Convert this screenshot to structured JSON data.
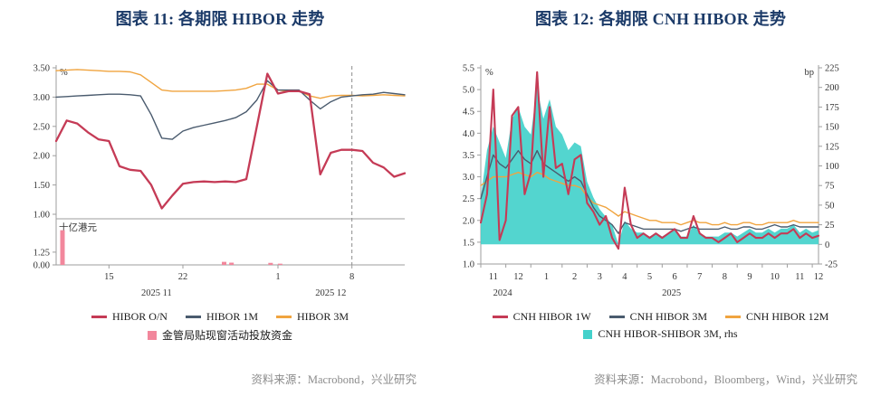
{
  "chart_data": [
    {
      "type": "line",
      "title": "图表 11: 各期限 HIBOR 走势",
      "y_unit": "%",
      "ylim": [
        1.0,
        3.5
      ],
      "ytick_step": 0.5,
      "x_count": 34,
      "xticks": [
        {
          "pos": 5,
          "label": "15"
        },
        {
          "pos": 12,
          "label": "22"
        },
        {
          "pos": 21,
          "label": "1"
        },
        {
          "pos": 28,
          "label": "8"
        }
      ],
      "xperiod_labels": [
        {
          "pos": 9.5,
          "label": "2025 11"
        },
        {
          "pos": 26,
          "label": "2025 12"
        }
      ],
      "dashed_line_pos": 28,
      "series": [
        {
          "name": "HIBOR O/N",
          "color": "#C53B56",
          "width": 2.3,
          "values": [
            2.25,
            2.6,
            2.55,
            2.4,
            2.28,
            2.25,
            1.82,
            1.76,
            1.74,
            1.5,
            1.1,
            1.32,
            1.52,
            1.55,
            1.56,
            1.55,
            1.56,
            1.55,
            1.6,
            2.5,
            3.4,
            3.06,
            3.1,
            3.1,
            3.05,
            1.68,
            2.05,
            2.1,
            2.1,
            2.08,
            1.88,
            1.8,
            1.64,
            1.7
          ]
        },
        {
          "name": "HIBOR 1M",
          "color": "#4A5B6E",
          "width": 1.4,
          "values": [
            3.0,
            3.01,
            3.02,
            3.03,
            3.04,
            3.05,
            3.05,
            3.04,
            3.02,
            2.7,
            2.3,
            2.28,
            2.42,
            2.48,
            2.52,
            2.56,
            2.6,
            2.65,
            2.75,
            2.95,
            3.28,
            3.12,
            3.12,
            3.12,
            2.95,
            2.8,
            2.92,
            3.0,
            3.02,
            3.04,
            3.05,
            3.08,
            3.06,
            3.04
          ]
        },
        {
          "name": "HIBOR 3M",
          "color": "#F0A43F",
          "width": 1.4,
          "values": [
            3.45,
            3.46,
            3.47,
            3.46,
            3.45,
            3.44,
            3.44,
            3.43,
            3.38,
            3.25,
            3.12,
            3.1,
            3.1,
            3.1,
            3.1,
            3.1,
            3.11,
            3.12,
            3.15,
            3.22,
            3.22,
            3.12,
            3.1,
            3.1,
            3.02,
            2.98,
            3.02,
            3.03,
            3.03,
            3.02,
            3.03,
            3.04,
            3.03,
            3.02
          ]
        }
      ],
      "bar_panel": {
        "name": "金管局贴现窗活动投放资金",
        "unit": "十亿港元",
        "color": "#F2879C",
        "ylim": [
          0,
          3.9
        ],
        "yticks": [
          {
            "v": 1.25,
            "label": "1.25"
          },
          {
            "v": 0,
            "label": "0.00"
          }
        ],
        "bars": [
          {
            "pos": 0.6,
            "value": 3.4
          },
          {
            "pos": 15.9,
            "value": 0.3
          },
          {
            "pos": 16.6,
            "value": 0.22
          },
          {
            "pos": 20.3,
            "value": 0.2
          },
          {
            "pos": 21.2,
            "value": 0.12
          }
        ]
      },
      "source": "资料来源：Macrobond，兴业研究"
    },
    {
      "type": "line+area",
      "title": "图表 12: 各期限 CNH HIBOR 走势",
      "unit_left": "%",
      "unit_right": "bp",
      "ylim_left": [
        1.0,
        5.5
      ],
      "ytick_step_left": 0.5,
      "ylim_right": [
        -25,
        225
      ],
      "ytick_step_right": 25,
      "x_count": 55,
      "month_boundaries": [
        0,
        4,
        8,
        13,
        17,
        21,
        25,
        29,
        33,
        37,
        41,
        45,
        49,
        53
      ],
      "xticks": [
        {
          "pos": 2,
          "label": "11"
        },
        {
          "pos": 6,
          "label": "12"
        },
        {
          "pos": 10.5,
          "label": "1"
        },
        {
          "pos": 15,
          "label": "2"
        },
        {
          "pos": 19,
          "label": "3"
        },
        {
          "pos": 23,
          "label": "4"
        },
        {
          "pos": 27,
          "label": "5"
        },
        {
          "pos": 31,
          "label": "6"
        },
        {
          "pos": 35,
          "label": "7"
        },
        {
          "pos": 39,
          "label": "8"
        },
        {
          "pos": 43,
          "label": "9"
        },
        {
          "pos": 47,
          "label": "10"
        },
        {
          "pos": 51,
          "label": "11"
        },
        {
          "pos": 54,
          "label": "12"
        }
      ],
      "year_labels": [
        {
          "pos": 3.5,
          "label": "2024"
        },
        {
          "pos": 30.5,
          "label": "2025"
        }
      ],
      "area": {
        "name": "CNH HIBOR-SHIBOR 3M, rhs",
        "color": "#44D1CB",
        "axis": "right",
        "values": [
          60,
          120,
          150,
          130,
          110,
          160,
          175,
          150,
          140,
          200,
          160,
          185,
          150,
          140,
          120,
          130,
          125,
          80,
          60,
          45,
          35,
          25,
          0,
          30,
          20,
          15,
          15,
          10,
          15,
          10,
          15,
          20,
          10,
          10,
          25,
          15,
          10,
          10,
          10,
          15,
          15,
          10,
          15,
          20,
          15,
          15,
          20,
          15,
          20,
          20,
          25,
          15,
          20,
          15,
          18
        ]
      },
      "series": [
        {
          "name": "CNH HIBOR 1W",
          "color": "#C53B56",
          "width": 2.1,
          "values": [
            1.95,
            2.6,
            5.0,
            1.55,
            2.0,
            4.4,
            4.6,
            2.6,
            3.1,
            5.4,
            3.0,
            4.6,
            3.2,
            3.3,
            2.6,
            3.4,
            3.5,
            2.4,
            2.2,
            1.9,
            2.1,
            1.6,
            1.35,
            2.75,
            1.9,
            1.6,
            1.7,
            1.6,
            1.7,
            1.6,
            1.7,
            1.8,
            1.6,
            1.6,
            2.1,
            1.7,
            1.6,
            1.6,
            1.5,
            1.6,
            1.7,
            1.5,
            1.6,
            1.7,
            1.6,
            1.6,
            1.7,
            1.6,
            1.7,
            1.7,
            1.8,
            1.6,
            1.7,
            1.6,
            1.65
          ]
        },
        {
          "name": "CNH HIBOR 3M",
          "color": "#4A5B6E",
          "width": 1.4,
          "values": [
            2.5,
            3.0,
            3.5,
            3.3,
            3.2,
            3.4,
            3.6,
            3.4,
            3.3,
            3.6,
            3.3,
            3.2,
            3.1,
            3.0,
            2.9,
            3.0,
            2.9,
            2.6,
            2.3,
            2.1,
            2.0,
            1.9,
            1.7,
            1.95,
            1.9,
            1.85,
            1.8,
            1.8,
            1.8,
            1.8,
            1.8,
            1.8,
            1.75,
            1.8,
            1.85,
            1.8,
            1.8,
            1.8,
            1.8,
            1.85,
            1.8,
            1.8,
            1.85,
            1.85,
            1.8,
            1.8,
            1.85,
            1.9,
            1.85,
            1.85,
            1.9,
            1.85,
            1.85,
            1.85,
            1.85
          ]
        },
        {
          "name": "CNH HIBOR 12M",
          "color": "#F0A43F",
          "width": 1.4,
          "values": [
            2.8,
            2.9,
            3.0,
            3.0,
            3.0,
            3.05,
            3.1,
            3.05,
            3.0,
            3.1,
            3.05,
            2.95,
            2.9,
            2.85,
            2.8,
            2.8,
            2.75,
            2.55,
            2.4,
            2.35,
            2.3,
            2.2,
            2.1,
            2.2,
            2.15,
            2.1,
            2.05,
            2.0,
            2.0,
            1.95,
            1.95,
            1.95,
            1.9,
            1.95,
            2.0,
            1.95,
            1.95,
            1.9,
            1.9,
            1.95,
            1.9,
            1.9,
            1.95,
            1.95,
            1.9,
            1.9,
            1.95,
            1.95,
            1.95,
            1.95,
            2.0,
            1.95,
            1.95,
            1.95,
            1.95
          ]
        }
      ],
      "source": "资料来源：Macrobond，Bloomberg，Wind，兴业研究"
    }
  ]
}
